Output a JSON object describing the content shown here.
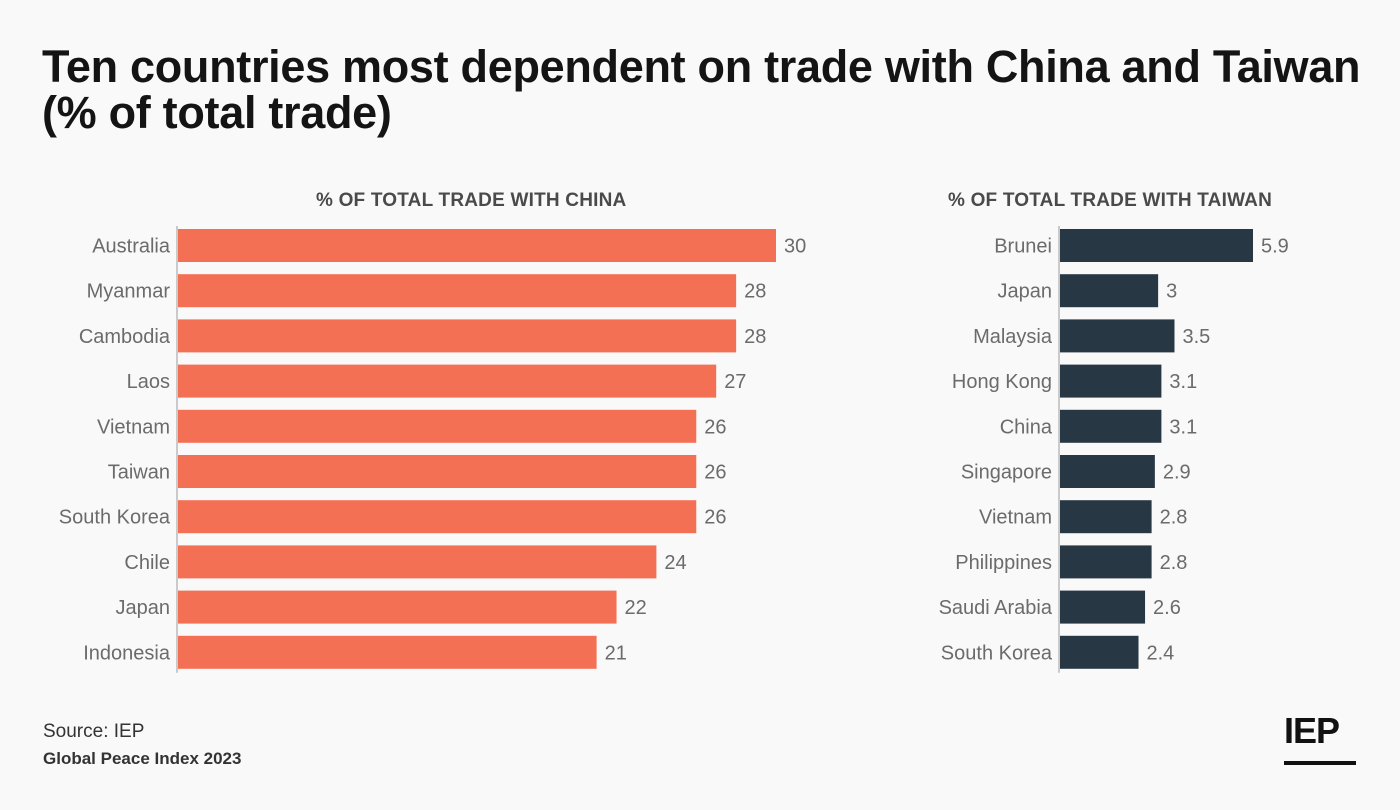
{
  "title": "Ten countries most dependent on trade with China and Taiwan (% of total trade)",
  "source": "Source: IEP",
  "footer": "Global Peace Index 2023",
  "logo": "IEP",
  "colors": {
    "china": "#f47055",
    "taiwan": "#283744",
    "axis": "#bbbbbb",
    "label": "#6b6b6b"
  },
  "chart_data": [
    {
      "type": "bar",
      "orientation": "horizontal",
      "title": "% OF TOTAL TRADE WITH CHINA",
      "categories": [
        "Australia",
        "Myanmar",
        "Cambodia",
        "Laos",
        "Vietnam",
        "Taiwan",
        "South Korea",
        "Chile",
        "Japan",
        "Indonesia"
      ],
      "values": [
        30,
        28,
        28,
        27,
        26,
        26,
        26,
        24,
        22,
        21
      ],
      "xlim": [
        0,
        30
      ],
      "grid": false
    },
    {
      "type": "bar",
      "orientation": "horizontal",
      "title": "% OF TOTAL TRADE WITH TAIWAN",
      "categories": [
        "Brunei",
        "Japan",
        "Malaysia",
        "Hong Kong",
        "China",
        "Singapore",
        "Vietnam",
        "Philippines",
        "Saudi Arabia",
        "South Korea"
      ],
      "values": [
        5.9,
        3,
        3.5,
        3.1,
        3.1,
        2.9,
        2.8,
        2.8,
        2.6,
        2.4
      ],
      "xlim": [
        0,
        5.9
      ],
      "grid": false
    }
  ]
}
